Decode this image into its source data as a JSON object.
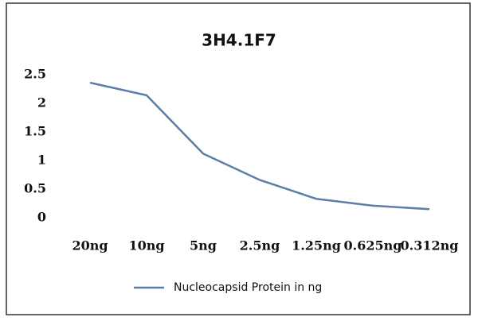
{
  "chart_data": {
    "type": "line",
    "title": "3H4.1F7",
    "categories": [
      "20ng",
      "10ng",
      "5ng",
      "2.5ng",
      "1.25ng",
      "0.625ng",
      "0.312ng"
    ],
    "series": [
      {
        "name": "Nucleocapsid Protein in ng",
        "color": "#5b7ea6",
        "values": [
          2.36,
          2.14,
          1.12,
          0.66,
          0.33,
          0.21,
          0.15
        ]
      }
    ],
    "ylim": [
      0,
      2.5
    ],
    "yticks": [
      0,
      0.5,
      1,
      1.5,
      2,
      2.5
    ],
    "grid": false,
    "legend": "bottom"
  }
}
